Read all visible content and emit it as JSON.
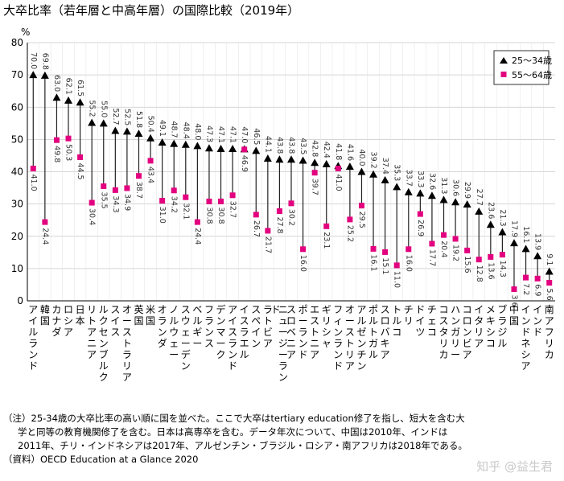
{
  "title": "大卒比率（若年層と中高年層）の国際比較（2019年）",
  "chart_data": {
    "type": "dumbbell",
    "unit": "%",
    "ylim": [
      0,
      80
    ],
    "yticks": [
      0,
      10,
      20,
      30,
      40,
      50,
      60,
      70,
      80
    ],
    "grid": "horizontal",
    "legend_position": "top-right",
    "series": [
      {
        "name": "25～34歳",
        "marker": "triangle",
        "color": "#000000",
        "values": [
          70.0,
          69.8,
          63.0,
          62.1,
          61.5,
          55.2,
          55.0,
          52.7,
          52.5,
          51.8,
          50.4,
          49.1,
          48.7,
          48.4,
          48.0,
          47.3,
          47.1,
          47.1,
          47.0,
          46.5,
          44.1,
          43.8,
          43.8,
          43.5,
          42.8,
          42.4,
          41.8,
          41.6,
          40.0,
          39.2,
          37.4,
          35.3,
          33.7,
          33.3,
          32.6,
          31.3,
          30.6,
          29.9,
          27.7,
          23.6,
          21.3,
          17.9,
          16.1,
          13.9,
          9.1
        ]
      },
      {
        "name": "55～64歳",
        "marker": "square",
        "color": "#e3007f",
        "values": [
          41.0,
          24.4,
          49.8,
          50.3,
          44.5,
          30.4,
          35.5,
          34.3,
          34.9,
          38.7,
          43.4,
          31.0,
          34.2,
          32.1,
          24.4,
          30.8,
          30.8,
          32.7,
          46.9,
          26.7,
          21.7,
          27.8,
          30.2,
          16.0,
          39.7,
          23.1,
          41.0,
          25.2,
          29.5,
          16.1,
          15.1,
          11.0,
          16.0,
          26.9,
          17.7,
          20.4,
          19.2,
          15.6,
          12.8,
          13.6,
          14.3,
          3.6,
          7.2,
          6.9,
          5.6
        ]
      }
    ],
    "categories": [
      "アイルランド",
      "韓国",
      "カナダ",
      "ロシア",
      "日本",
      "リトアニア",
      "ルクセンブルク",
      "スイス",
      "オーストラリア",
      "英国",
      "米国",
      "オランダ",
      "ノルウェー",
      "スウェーデン",
      "ベルギー",
      "フランス",
      "デンマーク",
      "アイスランド",
      "イスラエル",
      "スペイン",
      "ラトビア",
      "ニュージーランド",
      "スロベニア",
      "ポーランド",
      "エストニア",
      "ギリシャ",
      "フィンランド",
      "オーストリア",
      "アルゼンチン",
      "ポルトガル",
      "スロバキア",
      "トルコ",
      "チリ",
      "ドイツ",
      "チェコ",
      "コスタリカ",
      "ハンガリー",
      "コロンビア",
      "イタリア",
      "メキシコ",
      "ブラジル",
      "中国",
      "インドネシア",
      "インド",
      "南アフリカ"
    ]
  },
  "notes": [
    "（注）25-34歳の大卒比率の高い順に国を並べた。ここで大卒はtertiary education修了を指し、短大を含む大",
    "学と同等の教育機関修了を含む。日本は高専卒を含む。データ年次について、中国は2010年、インドは",
    "2011年、チリ・インドネシアは2017年、アルゼンチン・ブラジル・ロシア・南アフリカは2018年である。",
    "（資料）OECD Education at a Glance 2020"
  ],
  "watermark": "知乎 @益生君"
}
